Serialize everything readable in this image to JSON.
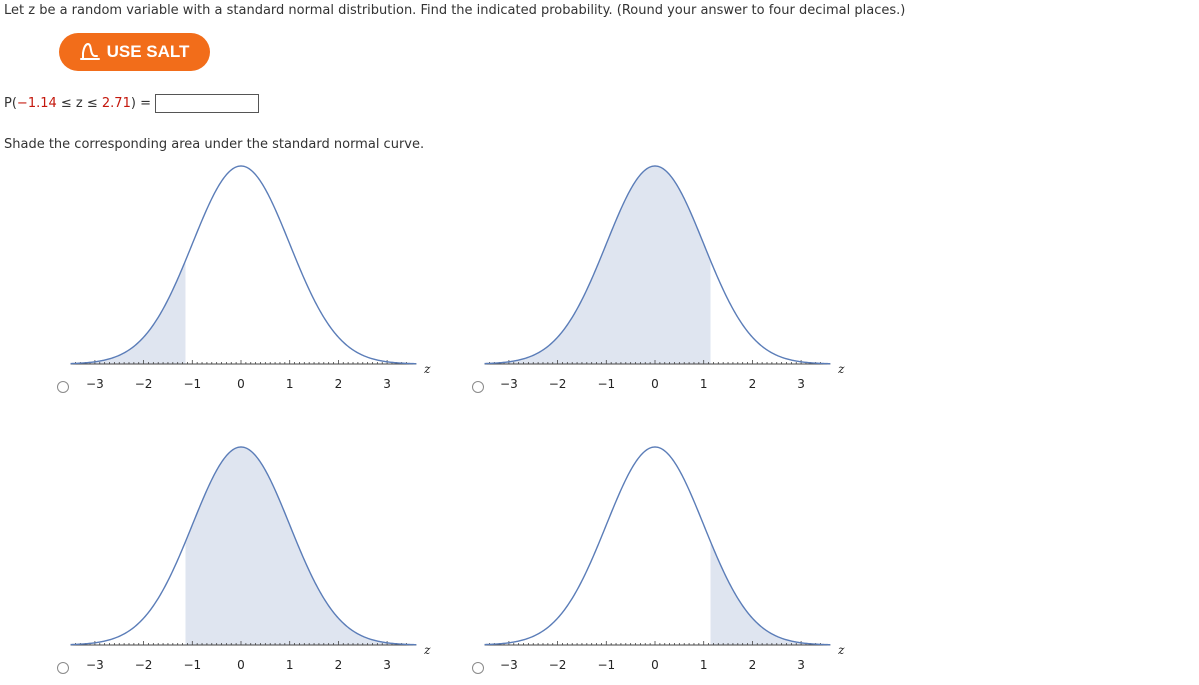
{
  "question_text": "Let z be a random variable with a standard normal distribution. Find the indicated probability. (Round your answer to four decimal places.)",
  "salt_button_label": "USE SALT",
  "probability": {
    "prefix": "P(",
    "lower": "−1.14",
    "middle": " ≤ z ≤ ",
    "upper": "2.71",
    "suffix": ") =",
    "answer_value": ""
  },
  "shade_instruction": "Shade the corresponding area under the standard normal curve.",
  "colors": {
    "curve": "#5b7db8",
    "shade": "#dfe5f0",
    "salt_button": "#f26d1a",
    "red_value": "#c4170c"
  },
  "options": [
    {
      "id": "option-top-left",
      "shade_from": -4,
      "shade_to": -1.14
    },
    {
      "id": "option-top-right",
      "shade_from": -4,
      "shade_to": 1.14
    },
    {
      "id": "option-bottom-left",
      "shade_from": -1.14,
      "shade_to": 4
    },
    {
      "id": "option-bottom-right",
      "shade_from": 1.14,
      "shade_to": 4
    }
  ],
  "axis": {
    "ticks": [
      "−3",
      "−2",
      "−1",
      "0",
      "1",
      "2",
      "3"
    ],
    "variable_label": "z"
  }
}
